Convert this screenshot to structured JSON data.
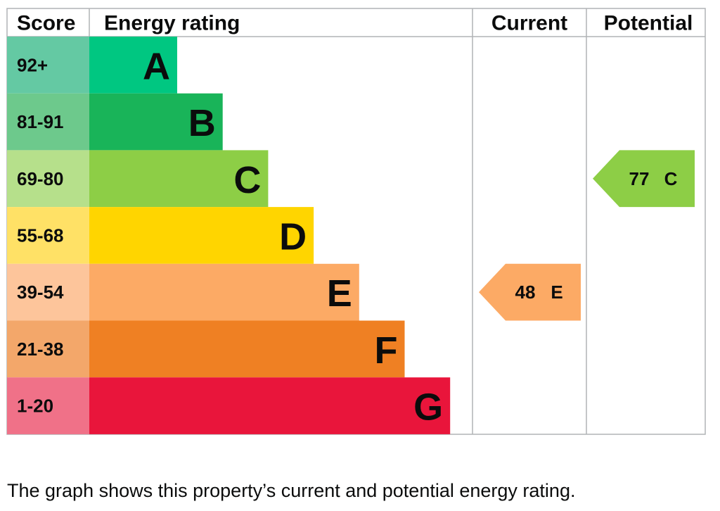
{
  "headers": {
    "score": "Score",
    "rating": "Energy rating",
    "current": "Current",
    "potential": "Potential"
  },
  "bands": [
    {
      "score": "92+",
      "letter": "A",
      "color": "#00c781",
      "light": "#64c9a3"
    },
    {
      "score": "81-91",
      "letter": "B",
      "color": "#19b459",
      "light": "#6dc98c"
    },
    {
      "score": "69-80",
      "letter": "C",
      "color": "#8dce46",
      "light": "#b6e08b"
    },
    {
      "score": "55-68",
      "letter": "D",
      "color": "#ffd500",
      "light": "#ffe166"
    },
    {
      "score": "39-54",
      "letter": "E",
      "color": "#fcaa65",
      "light": "#fdc59b"
    },
    {
      "score": "21-38",
      "letter": "F",
      "color": "#ef8023",
      "light": "#f3a76a"
    },
    {
      "score": "1-20",
      "letter": "G",
      "color": "#e9153b",
      "light": "#f07188"
    }
  ],
  "current": {
    "score": 48,
    "letter": "E"
  },
  "potential": {
    "score": 77,
    "letter": "C"
  },
  "caption": "The graph shows this property’s current and potential energy rating."
}
